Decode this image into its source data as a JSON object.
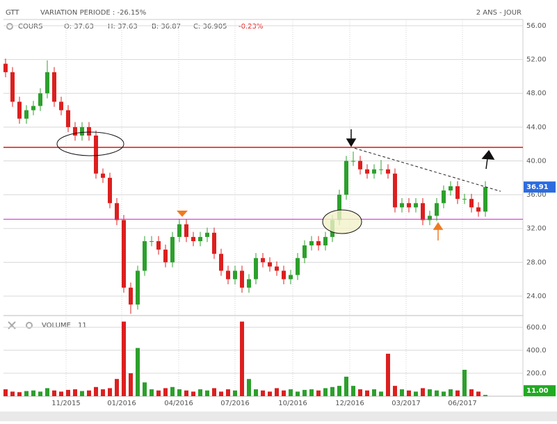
{
  "chart_data": {
    "type": "candlestick",
    "title": "GTT",
    "subtitle": "VARIATION PERIODE : -26.15%",
    "period": "2 ANS - JOUR",
    "series_label": "COURS",
    "quote": [
      "O: 37.63",
      "H: 37.63",
      "B: 36.87",
      "C: 36.905"
    ],
    "change": "-0.23%",
    "up_color": "#2ca02c",
    "down_color": "#dd1f1f",
    "grid": true,
    "xlim": [
      -0.3,
      74.4
    ],
    "xticks": [
      {
        "value": 8.7,
        "label": "11/2015"
      },
      {
        "value": 16.7,
        "label": "01/2016"
      },
      {
        "value": 24.9,
        "label": "04/2016"
      },
      {
        "value": 33,
        "label": "07/2016"
      },
      {
        "value": 41.3,
        "label": "10/2016"
      },
      {
        "value": 49.5,
        "label": "12/2016"
      },
      {
        "value": 57.6,
        "label": "03/2017"
      },
      {
        "value": 65.7,
        "label": "06/2017"
      }
    ],
    "ylim": [
      21.86,
      56.74
    ],
    "yticks": [
      {
        "value": 24,
        "label": "24.00"
      },
      {
        "value": 28,
        "label": "28.00"
      },
      {
        "value": 32,
        "label": "32.00"
      },
      {
        "value": 36,
        "label": "36.00"
      },
      {
        "value": 40,
        "label": "40.00"
      },
      {
        "value": 44,
        "label": "44.00"
      },
      {
        "value": 48,
        "label": "48.00"
      },
      {
        "value": 52,
        "label": "52.00"
      },
      {
        "value": 56,
        "label": "56.00"
      }
    ],
    "open": [
      51.5,
      50.5,
      47,
      45,
      46,
      46.5,
      48,
      50.5,
      47,
      46,
      44,
      43,
      44,
      43,
      38.5,
      38,
      35,
      33,
      25,
      23,
      27,
      30.5,
      30.5,
      29.5,
      28,
      31,
      32.5,
      31,
      30.5,
      31,
      31.5,
      29,
      27,
      26,
      27,
      25,
      26,
      28.5,
      28,
      27.5,
      27,
      26,
      26.5,
      28.5,
      30,
      30.5,
      30,
      31,
      33,
      36,
      40,
      40,
      39,
      38.5,
      39,
      39,
      38.5,
      34.5,
      35,
      34.5,
      35,
      33,
      33.5,
      35,
      36.5,
      37,
      35.5,
      35.5,
      34.5,
      34
    ],
    "high": [
      52.1,
      51.1,
      47.6,
      46.6,
      47.1,
      48.6,
      51.9,
      51.1,
      47.6,
      46.6,
      44.6,
      44.6,
      44.6,
      43.6,
      39.1,
      38.6,
      35.6,
      33.6,
      25.6,
      27.6,
      31.1,
      31.1,
      31.1,
      30.1,
      31.6,
      33.1,
      33.1,
      31.6,
      31.6,
      32.1,
      32.1,
      29.6,
      27.6,
      27.6,
      27.6,
      26.6,
      29.1,
      29.1,
      28.6,
      28.1,
      27.6,
      27.1,
      29.1,
      30.6,
      31.1,
      31.1,
      31.6,
      33.6,
      36.6,
      40.6,
      41.1,
      40.6,
      39.6,
      39.6,
      40.1,
      39.6,
      39.1,
      35.6,
      35.6,
      35.6,
      35.6,
      34.1,
      35.6,
      37.1,
      37.6,
      37.6,
      36.1,
      36.1,
      35.1,
      37.6
    ],
    "low": [
      49.9,
      46.4,
      44.4,
      44.4,
      45.4,
      45.9,
      47.4,
      46.4,
      45.4,
      43.4,
      42.4,
      42.4,
      42.4,
      37.9,
      37.4,
      34.4,
      32.4,
      24.4,
      21.9,
      22.4,
      26.4,
      29.9,
      28.9,
      27.4,
      27.4,
      30.4,
      30.4,
      29.9,
      29.9,
      30.4,
      28.4,
      26.4,
      25.4,
      25.4,
      24.4,
      24.4,
      25.4,
      27.4,
      26.9,
      26.4,
      25.4,
      25.4,
      25.9,
      27.9,
      29.4,
      29.4,
      29.4,
      30.4,
      32.4,
      35.4,
      39.4,
      38.4,
      37.9,
      37.9,
      38.4,
      37.9,
      33.9,
      33.9,
      33.9,
      33.9,
      32.4,
      32.4,
      32.9,
      34.4,
      35.9,
      34.9,
      34.9,
      33.9,
      33.4,
      33.4
    ],
    "close": [
      50.5,
      47,
      45,
      46,
      46.5,
      48,
      50.5,
      47,
      46,
      44,
      43,
      44,
      43,
      38.5,
      38,
      35,
      33,
      25,
      23,
      27,
      30.5,
      30.5,
      29.5,
      28,
      31,
      32.5,
      31,
      30.5,
      31,
      31.5,
      29,
      27,
      26,
      27,
      25,
      26,
      28.5,
      28,
      27.5,
      27,
      26,
      26.5,
      28.5,
      30,
      30.5,
      30,
      31,
      33,
      36,
      40,
      40,
      39,
      38.5,
      39,
      39,
      38.5,
      34.5,
      35,
      34.5,
      35,
      33,
      33.5,
      35,
      36.5,
      37,
      35.5,
      35.5,
      34.5,
      34,
      36.905
    ],
    "price_tag": {
      "value": 36.905,
      "label": "36.91",
      "color": "#2d6cdf"
    },
    "levels": [
      {
        "value": 41.6,
        "color": "#e01010"
      },
      {
        "value": 33.1,
        "color": "#d020d0"
      }
    ],
    "trendline": {
      "x": [
        50.2,
        71.2
      ],
      "y": [
        41.5,
        36.4
      ]
    },
    "volume": {
      "label": "VOLUME",
      "last": "11",
      "values": [
        60,
        40,
        35,
        45,
        50,
        40,
        70,
        50,
        40,
        55,
        60,
        45,
        50,
        80,
        60,
        70,
        150,
        650,
        200,
        420,
        120,
        60,
        50,
        70,
        80,
        60,
        50,
        40,
        60,
        50,
        70,
        40,
        60,
        50,
        650,
        150,
        60,
        50,
        40,
        70,
        50,
        60,
        40,
        55,
        60,
        50,
        70,
        80,
        90,
        170,
        90,
        60,
        50,
        60,
        40,
        370,
        90,
        60,
        50,
        40,
        70,
        60,
        50,
        40,
        60,
        50,
        230,
        60,
        40,
        11
      ],
      "ylim": [
        0,
        666
      ],
      "yticks": [
        {
          "value": 200,
          "label": "200.0"
        },
        {
          "value": 400,
          "label": "400.0"
        },
        {
          "value": 600,
          "label": "600.0"
        }
      ],
      "tag": {
        "value": 11,
        "label": "11.00",
        "color": "#22aa22"
      }
    }
  }
}
